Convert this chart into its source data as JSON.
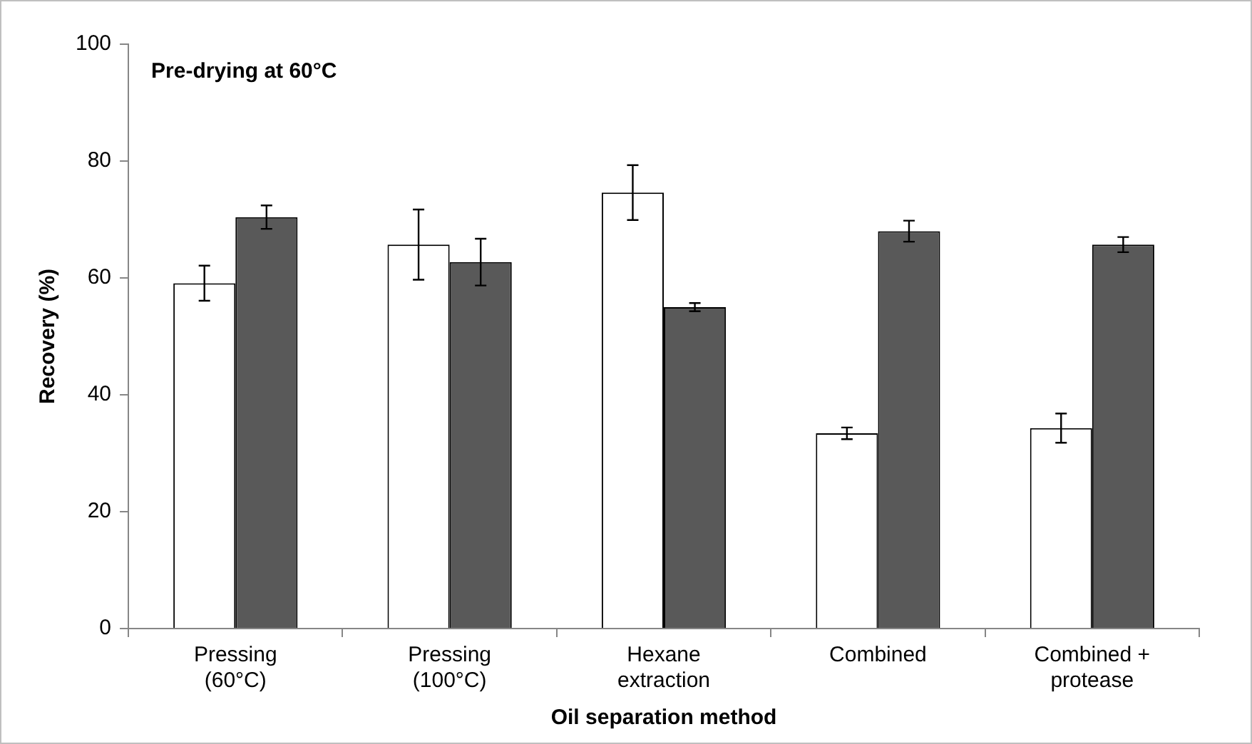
{
  "chart_data": {
    "type": "bar",
    "xlabel": "Oil separation method",
    "ylabel": "Recovery (%)",
    "annotations": [
      "Pre-drying at 60°C"
    ],
    "categories": [
      "Pressing\n(60°C)",
      "Pressing\n(100°C)",
      "Hexane\nextraction",
      "Combined",
      "Combined +\nprotease"
    ],
    "series": [
      {
        "color": "#ffffff",
        "values": [
          59.1,
          65.7,
          74.6,
          33.4,
          34.3
        ],
        "errors": [
          3,
          6,
          4.7,
          1,
          2.5
        ]
      },
      {
        "color": "#595959",
        "values": [
          70.4,
          62.7,
          55,
          68,
          65.7
        ],
        "errors": [
          2,
          4,
          0.7,
          1.8,
          1.3
        ]
      }
    ],
    "ylim": [
      0,
      100
    ],
    "yticks": [
      0,
      20,
      40,
      60,
      80,
      100
    ],
    "grid": false,
    "legend": false
  }
}
